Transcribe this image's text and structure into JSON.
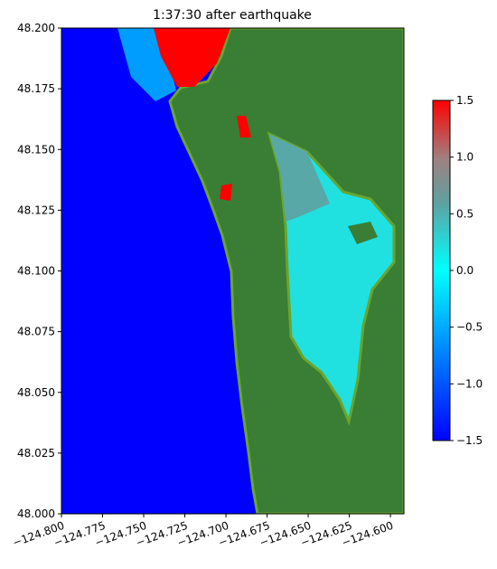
{
  "chart_data": {
    "type": "map",
    "title": "1:37:30 after earthquake",
    "xlim": [
      -124.8,
      -124.5918
    ],
    "ylim": [
      48.0,
      48.2
    ],
    "xticks": [
      {
        "value": -124.8,
        "label": "−124.800"
      },
      {
        "value": -124.775,
        "label": "−124.775"
      },
      {
        "value": -124.75,
        "label": "−124.750"
      },
      {
        "value": -124.725,
        "label": "−124.725"
      },
      {
        "value": -124.7,
        "label": "−124.700"
      },
      {
        "value": -124.675,
        "label": "−124.675"
      },
      {
        "value": -124.65,
        "label": "−124.650"
      },
      {
        "value": -124.625,
        "label": "−124.625"
      },
      {
        "value": -124.6,
        "label": "−124.600"
      }
    ],
    "yticks": [
      {
        "value": 48.0,
        "label": "48.000"
      },
      {
        "value": 48.025,
        "label": "48.025"
      },
      {
        "value": 48.05,
        "label": "48.050"
      },
      {
        "value": 48.075,
        "label": "48.075"
      },
      {
        "value": 48.1,
        "label": "48.100"
      },
      {
        "value": 48.125,
        "label": "48.125"
      },
      {
        "value": 48.15,
        "label": "48.150"
      },
      {
        "value": 48.175,
        "label": "48.175"
      },
      {
        "value": 48.2,
        "label": "48.200"
      }
    ],
    "colorbar": {
      "lim": [
        -1.5,
        1.5
      ],
      "ticks": [
        {
          "value": -1.5,
          "label": "−1.5"
        },
        {
          "value": -1.0,
          "label": "−1.0"
        },
        {
          "value": -0.5,
          "label": "−0.5"
        },
        {
          "value": 0.0,
          "label": "0.0"
        },
        {
          "value": 0.5,
          "label": "0.5"
        },
        {
          "value": 1.0,
          "label": "1.0"
        },
        {
          "value": 1.5,
          "label": "1.5"
        }
      ]
    }
  }
}
